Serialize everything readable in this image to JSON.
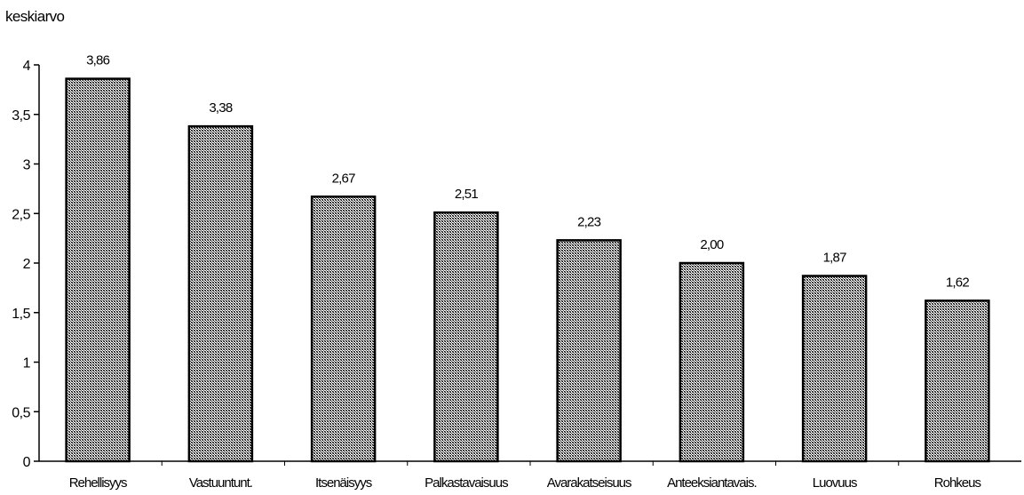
{
  "chart_data": {
    "type": "bar",
    "title": "",
    "xlabel": "",
    "ylabel": "keskiarvo",
    "ylim": [
      0,
      4
    ],
    "yticks": [
      "0",
      "0,5",
      "1",
      "1,5",
      "2",
      "2,5",
      "3",
      "3,5",
      "4"
    ],
    "yticks_values": [
      0,
      0.5,
      1,
      1.5,
      2,
      2.5,
      3,
      3.5,
      4
    ],
    "categories": [
      "Rehellisyys",
      "Vastuuntunt.",
      "Itsenäisyys",
      "Palkastavaisuus",
      "Avarakatseisuus",
      "Anteeksiantavais.",
      "Luovuus",
      "Rohkeus"
    ],
    "values": [
      3.86,
      3.38,
      2.67,
      2.51,
      2.23,
      2.0,
      1.87,
      1.62
    ],
    "value_labels": [
      "3,86",
      "3,38",
      "2,67",
      "2,51",
      "2,23",
      "2,00",
      "1,87",
      "1,62"
    ],
    "grid": false,
    "legend": "none",
    "bar_fill": "crosshatch-gray",
    "colors": {
      "bar_fill": "#a8a8a8",
      "bar_edge": "#000000",
      "axis": "#000000",
      "text": "#000000"
    }
  }
}
